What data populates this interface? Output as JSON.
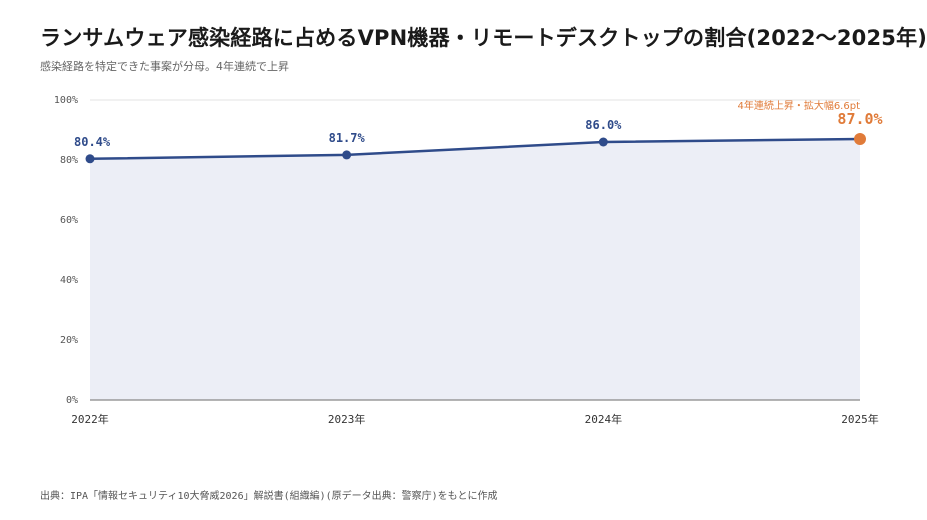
{
  "header": {
    "title": "ランサムウェア感染経路に占めるVPN機器・リモートデスクトップの割合(2022〜2025年)",
    "subtitle": "感染経路を特定できた事案が分母。4年連続で上昇"
  },
  "footer": {
    "source": "出典：IPA「情報セキュリティ10大脅威2026」解説書(組織編)(原データ出典：警察庁)をもとに作成"
  },
  "colors": {
    "line": "#2f4b8a",
    "area": "#eceef6",
    "highlight": "#e07b39",
    "grid": "#e3e3e3",
    "axis": "#888888"
  },
  "chart_data": {
    "type": "line",
    "x": [
      "2022年",
      "2023年",
      "2024年",
      "2025年"
    ],
    "values": [
      80.4,
      81.7,
      86.0,
      87.0
    ],
    "value_labels": [
      "80.4%",
      "81.7%",
      "86.0%",
      "87.0%"
    ],
    "yticks": [
      "0%",
      "20%",
      "40%",
      "60%",
      "80%",
      "100%"
    ],
    "ytick_values": [
      0,
      20,
      40,
      60,
      80,
      100
    ],
    "ylim": [
      0,
      100
    ],
    "grid": true,
    "highlight_index": 3,
    "annotation": "4年連続上昇・拡大幅6.6pt"
  }
}
